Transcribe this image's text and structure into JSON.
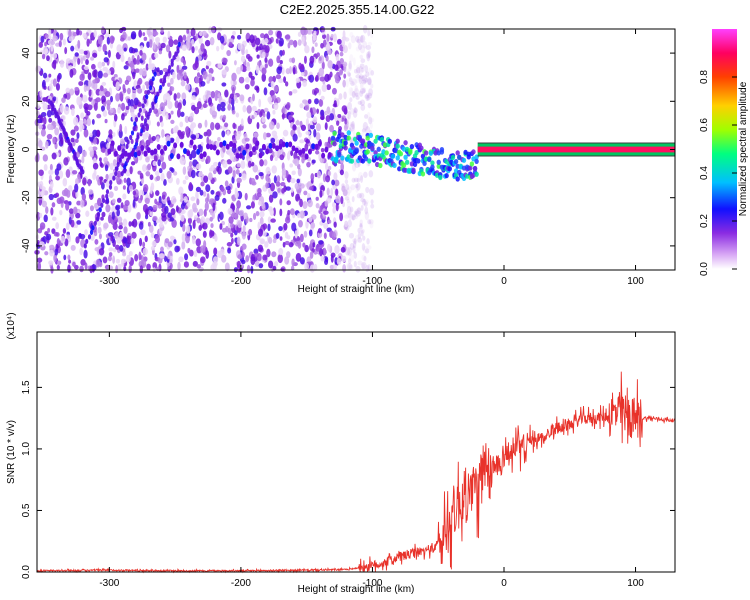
{
  "title": "C2E2.2025.355.14.00.G22",
  "chart_data": [
    {
      "type": "heatmap",
      "xlabel": "Height of straight line (km)",
      "ylabel": "Frequency (Hz)",
      "xlim": [
        -355,
        130
      ],
      "ylim": [
        -50,
        50
      ],
      "xticks": [
        -300,
        -200,
        -100,
        0,
        100
      ],
      "yticks": [
        -40,
        -20,
        0,
        20,
        40
      ],
      "colorbar": {
        "label": "Normalized spectral amplitude",
        "range": [
          0,
          1
        ],
        "ticks": [
          "0.0",
          "0.2",
          "0.4",
          "0.6",
          "0.8"
        ],
        "tick_values": [
          0.0,
          0.2,
          0.4,
          0.6,
          0.8
        ]
      },
      "features": {
        "noise_region_x": [
          -355,
          -120
        ],
        "signal_band_center_hz": 0,
        "strong_signal_x": [
          -20,
          130
        ]
      },
      "colors": [
        "#ffffff",
        "#d8b8f0",
        "#8a2be2",
        "#1010ff",
        "#00c8ff",
        "#00ff80",
        "#c0ff00",
        "#ffd000",
        "#ff4000",
        "#ff0060",
        "#ff40ff"
      ]
    },
    {
      "type": "line",
      "xlabel": "Height of straight line (km)",
      "ylabel": "SNR (10 * v/v)",
      "yscale_label": "(x10⁴)",
      "xlim": [
        -355,
        130
      ],
      "ylim": [
        0,
        1.95
      ],
      "xticks": [
        -300,
        -200,
        -100,
        0,
        100
      ],
      "yticks": [
        "0.0",
        "0.5",
        "1.0",
        "1.5"
      ],
      "ytick_values": [
        0,
        0.5,
        1.0,
        1.5
      ],
      "line_color": "#e8322a",
      "series": [
        {
          "x": [
            -355,
            -300,
            -250,
            -200,
            -150,
            -120,
            -100,
            -90,
            -80,
            -70,
            -60,
            -50,
            -45,
            -40,
            -35,
            -30,
            -25,
            -20,
            -15,
            -10,
            -5,
            0,
            10,
            20,
            30,
            40,
            50,
            60,
            70,
            80,
            90,
            95,
            100,
            110,
            120,
            130
          ],
          "values": [
            0.01,
            0.015,
            0.01,
            0.01,
            0.015,
            0.02,
            0.05,
            0.08,
            0.12,
            0.15,
            0.17,
            0.22,
            0.3,
            0.45,
            0.55,
            0.6,
            0.65,
            0.7,
            0.75,
            0.8,
            0.88,
            0.95,
            1.0,
            1.05,
            1.1,
            1.17,
            1.2,
            1.25,
            1.25,
            1.27,
            1.3,
            1.25,
            1.25,
            1.25,
            1.24,
            1.23
          ]
        }
      ]
    }
  ]
}
